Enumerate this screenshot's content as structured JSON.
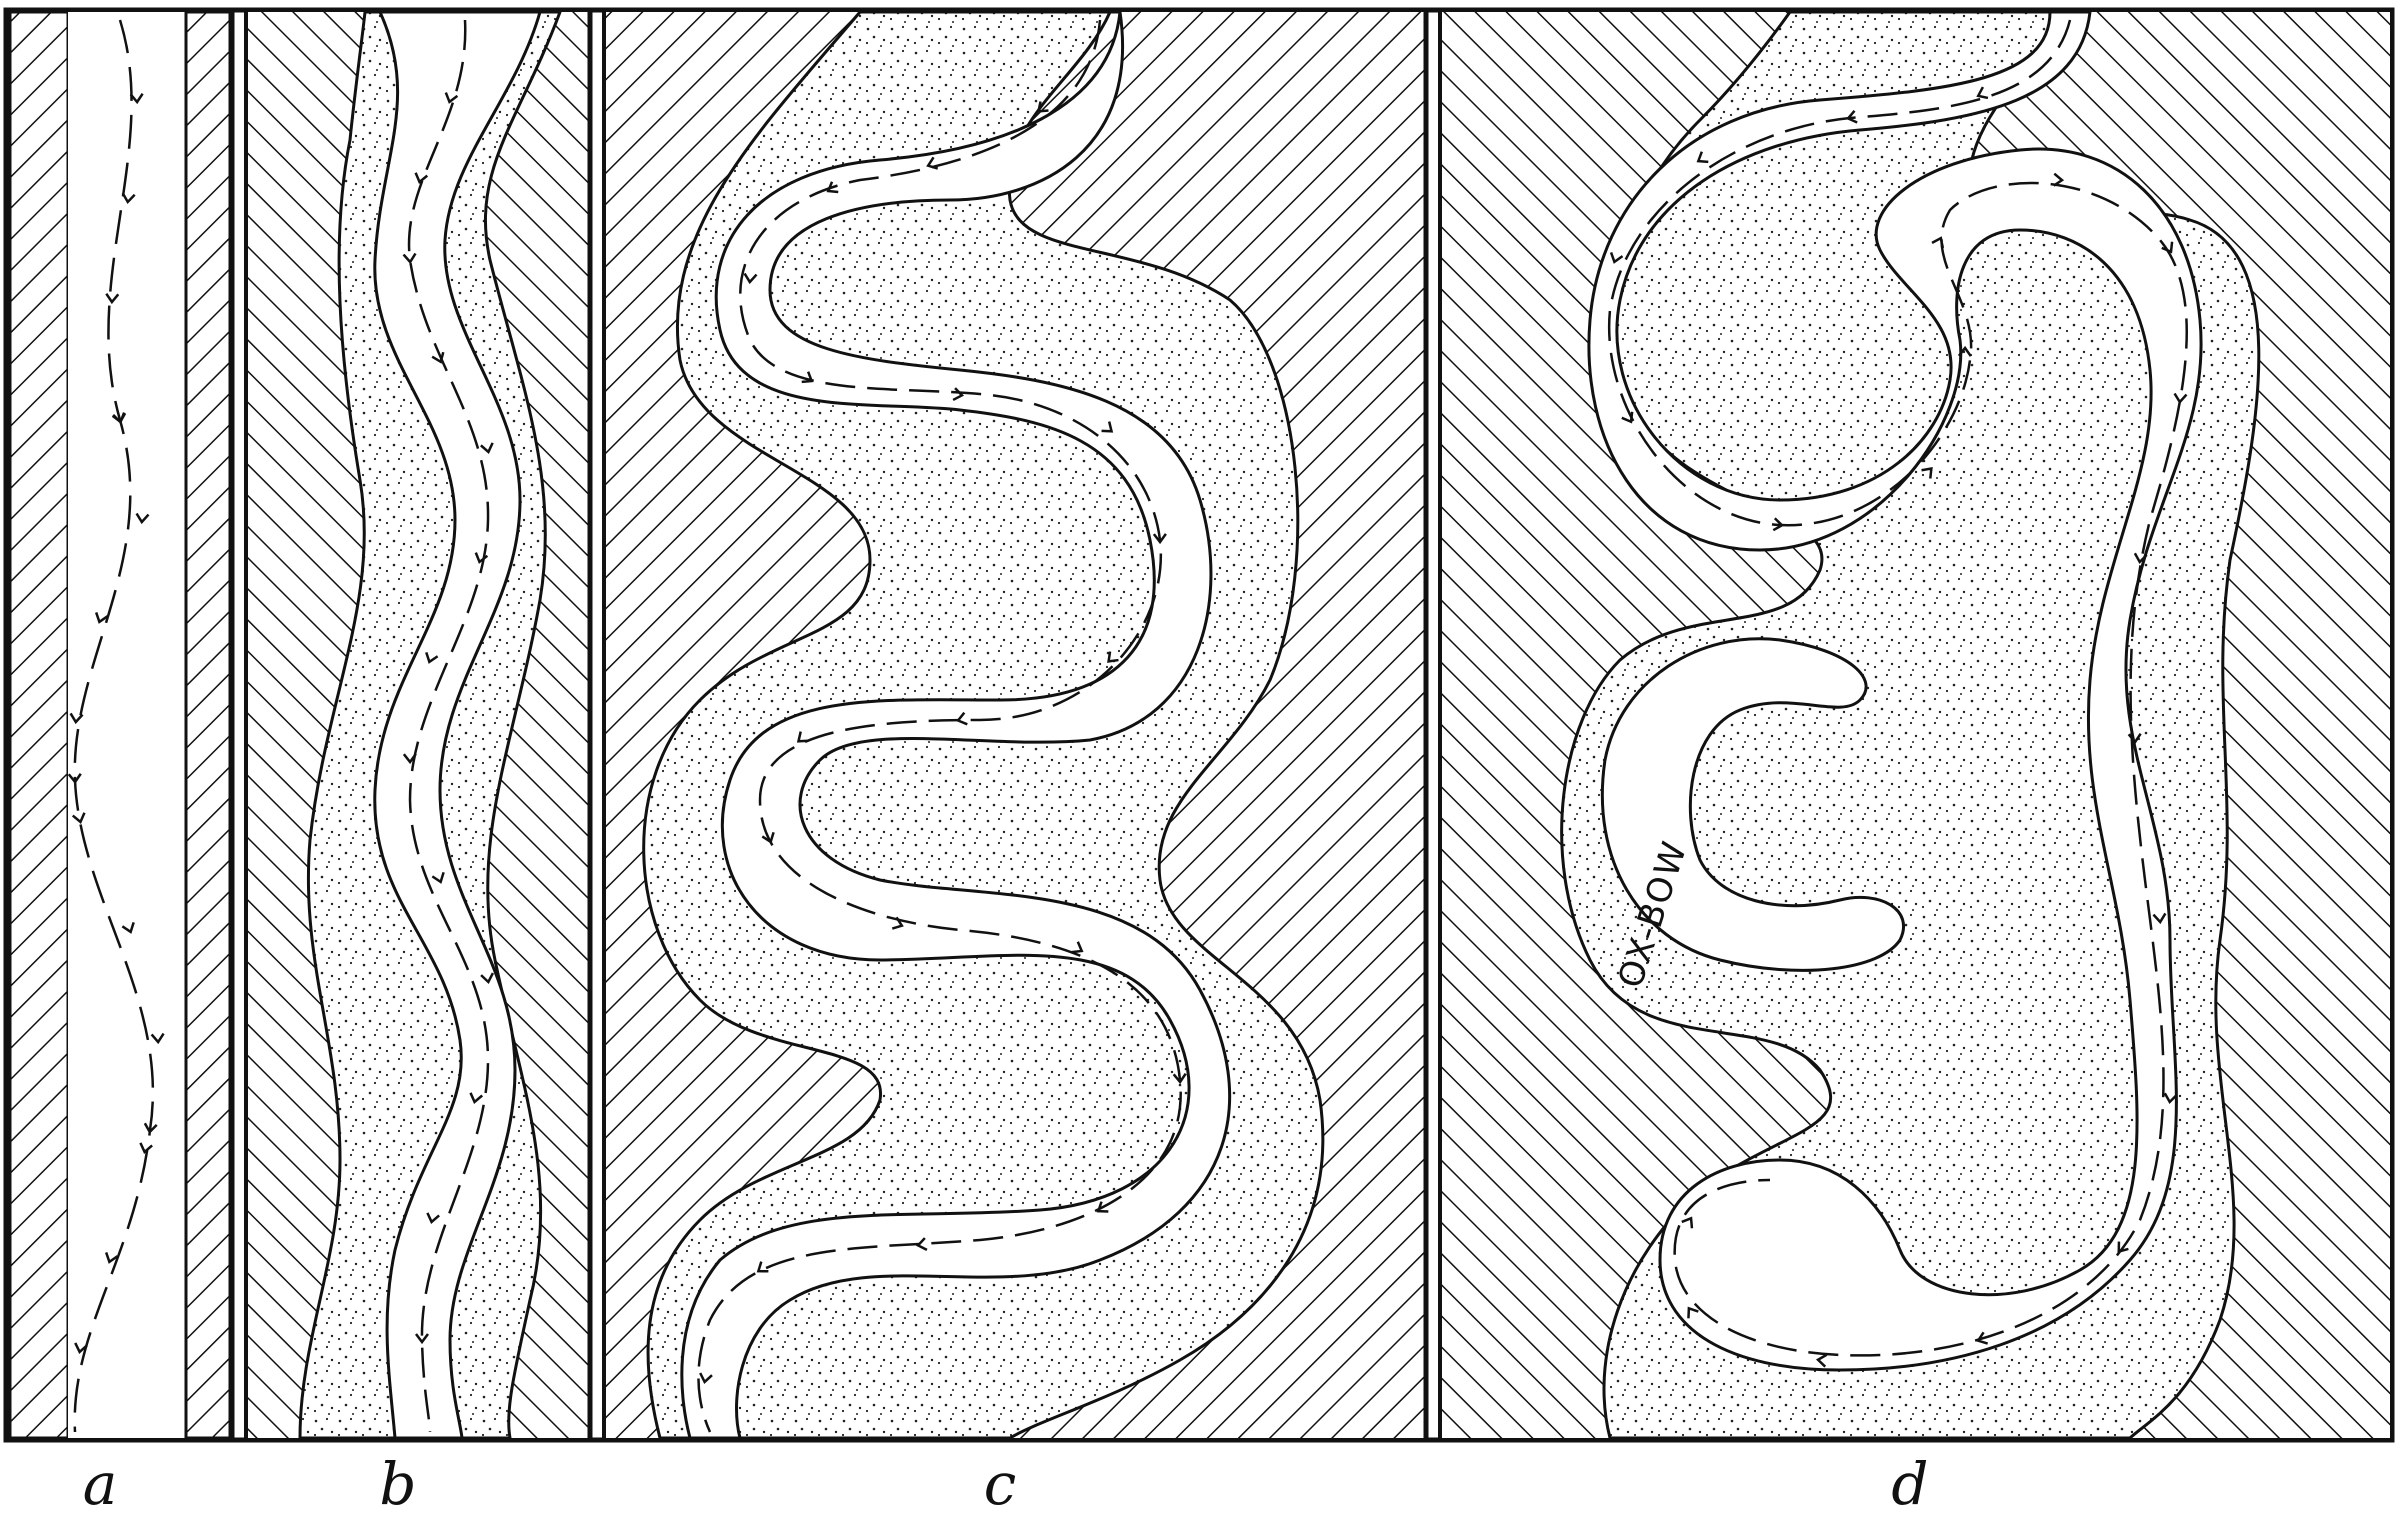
{
  "figure": {
    "panel_labels": [
      "a",
      "b",
      "c",
      "d"
    ],
    "oxbow_label": "OX-BOW",
    "colors": {
      "ink": "#111111",
      "paper": "#ffffff"
    }
  }
}
